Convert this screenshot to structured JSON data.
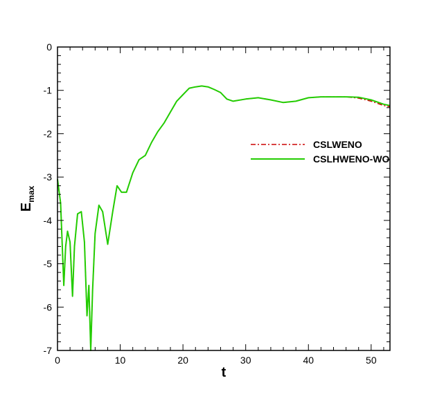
{
  "chart_data": {
    "type": "line",
    "title": "",
    "xlabel": "t",
    "ylabel": "E",
    "ylabel_subscript": "max",
    "xlim": [
      0,
      53
    ],
    "ylim": [
      -7,
      0
    ],
    "xticks": [
      "0",
      "10",
      "20",
      "30",
      "40",
      "50"
    ],
    "yticks": [
      "0",
      "-1",
      "-2",
      "-3",
      "-4",
      "-5",
      "-6",
      "-7"
    ],
    "grid": false,
    "legend_position": "right",
    "series": [
      {
        "name": "CSLWENO",
        "color": "#cc0000",
        "dash": "dash-dot",
        "x": [
          0,
          0.5,
          1,
          1.3,
          1.6,
          2,
          2.4,
          2.7,
          3.2,
          3.8,
          4.3,
          4.7,
          5.0,
          5.3,
          5.6,
          6.0,
          6.6,
          7.2,
          8.0,
          8.8,
          9.5,
          10.2,
          11.0,
          12.0,
          13.0,
          14.0,
          15.0,
          16.0,
          17.0,
          18.0,
          19.0,
          20.0,
          21.0,
          22.0,
          23.0,
          24.0,
          25.0,
          26.0,
          27.0,
          28.0,
          30.0,
          32.0,
          34.0,
          36.0,
          38.0,
          40.0,
          42.0,
          44.0,
          46.0,
          48.0,
          50.0,
          52.0,
          53.0
        ],
        "y": [
          -3.05,
          -3.6,
          -5.5,
          -4.6,
          -4.25,
          -4.5,
          -5.75,
          -4.6,
          -3.85,
          -3.8,
          -4.5,
          -6.2,
          -5.5,
          -7.0,
          -5.6,
          -4.3,
          -3.65,
          -3.8,
          -4.55,
          -3.8,
          -3.2,
          -3.35,
          -3.35,
          -2.9,
          -2.6,
          -2.5,
          -2.2,
          -1.95,
          -1.75,
          -1.5,
          -1.25,
          -1.1,
          -0.95,
          -0.92,
          -0.9,
          -0.92,
          -0.98,
          -1.05,
          -1.2,
          -1.25,
          -1.2,
          -1.17,
          -1.22,
          -1.28,
          -1.25,
          -1.17,
          -1.15,
          -1.15,
          -1.15,
          -1.18,
          -1.25,
          -1.35,
          -1.38
        ]
      },
      {
        "name": "CSLHWENO-WO",
        "color": "#22cc00",
        "dash": "solid",
        "x": [
          0,
          0.5,
          1,
          1.3,
          1.6,
          2,
          2.4,
          2.7,
          3.2,
          3.8,
          4.3,
          4.7,
          5.0,
          5.3,
          5.6,
          6.0,
          6.6,
          7.2,
          8.0,
          8.8,
          9.5,
          10.2,
          11.0,
          12.0,
          13.0,
          14.0,
          15.0,
          16.0,
          17.0,
          18.0,
          19.0,
          20.0,
          21.0,
          22.0,
          23.0,
          24.0,
          25.0,
          26.0,
          27.0,
          28.0,
          30.0,
          32.0,
          34.0,
          36.0,
          38.0,
          40.0,
          42.0,
          44.0,
          46.0,
          48.0,
          50.0,
          52.0,
          53.0
        ],
        "y": [
          -3.05,
          -3.6,
          -5.5,
          -4.6,
          -4.25,
          -4.5,
          -5.75,
          -4.6,
          -3.85,
          -3.8,
          -4.5,
          -6.2,
          -5.5,
          -7.0,
          -5.6,
          -4.3,
          -3.65,
          -3.8,
          -4.55,
          -3.8,
          -3.2,
          -3.35,
          -3.35,
          -2.9,
          -2.6,
          -2.5,
          -2.2,
          -1.95,
          -1.75,
          -1.5,
          -1.25,
          -1.1,
          -0.95,
          -0.92,
          -0.9,
          -0.92,
          -0.98,
          -1.05,
          -1.2,
          -1.25,
          -1.2,
          -1.17,
          -1.22,
          -1.28,
          -1.25,
          -1.17,
          -1.15,
          -1.15,
          -1.15,
          -1.16,
          -1.22,
          -1.32,
          -1.35
        ]
      }
    ]
  }
}
